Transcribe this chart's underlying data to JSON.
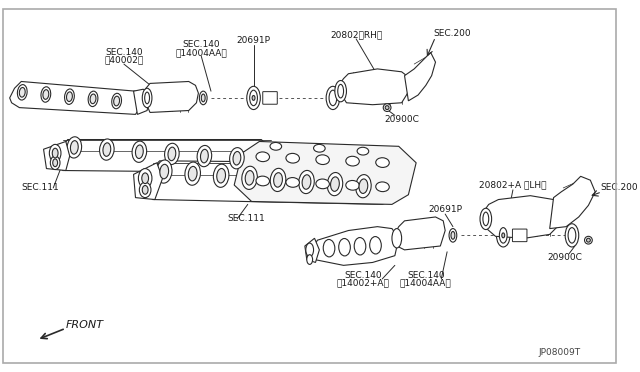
{
  "bg_color": "#ffffff",
  "line_color": "#2a2a2a",
  "text_color": "#1a1a1a",
  "border_color": "#888888",
  "labels": {
    "rh_part": "20802〈RH〉",
    "lh_part": "20802+A 〈LH〉",
    "sec200_1": "SEC.200",
    "sec200_2": "SEC.200",
    "sec140_rh_1": "SEC.140",
    "sec140_rh_1b": "ㅀ40002ぁ",
    "sec140_rh_2": "SEC.140",
    "sec140_rh_2b": "ㅀ14004AAぁ",
    "sec140_lh_1": "SEC.140",
    "sec140_lh_1b": "ㅀ14002+Aぁ",
    "sec140_lh_2": "SEC.140",
    "sec140_lh_2b": "ㅀ14004AAぁ",
    "gasket_rh": "20691P",
    "gasket_lh": "20691P",
    "spring_rh": "20900C",
    "spring_lh": "20900C",
    "sec111_1": "SEC.111",
    "sec111_2": "SEC.111",
    "front": "FRONT",
    "diagram_id": "JP08009T"
  }
}
